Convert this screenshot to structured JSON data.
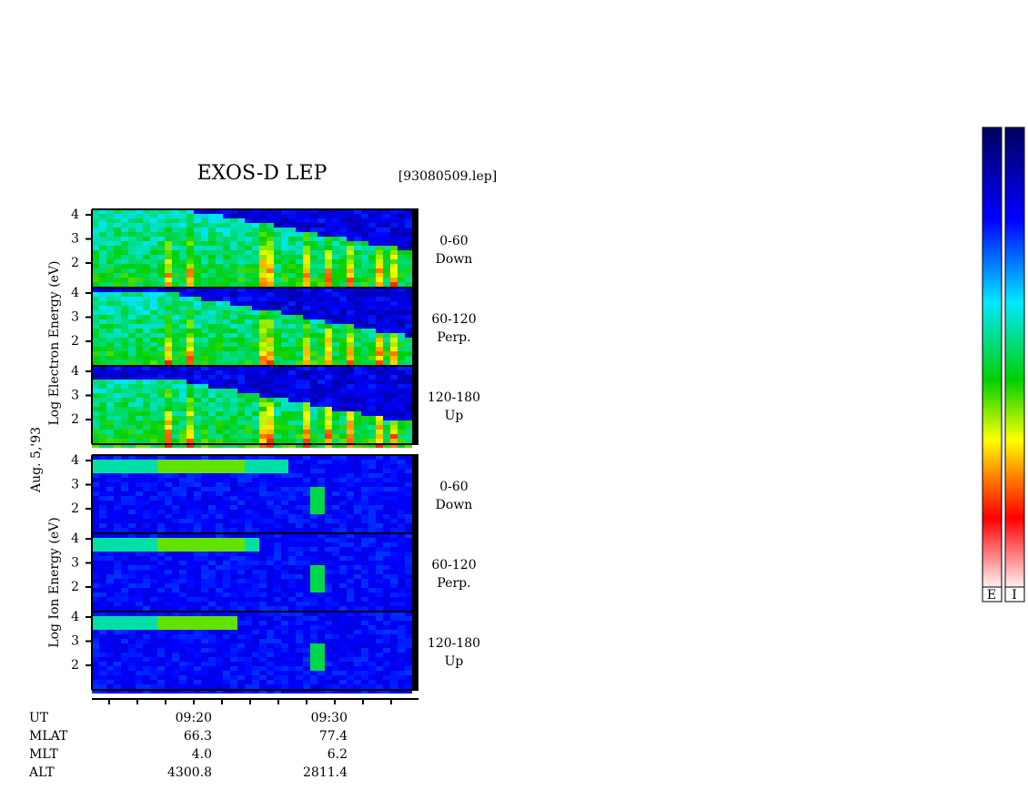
{
  "title": "EXOS-D LEP",
  "file": "[93080509.lep]",
  "date": "Aug. 5,'93",
  "energy_ticks": [
    4,
    3,
    2
  ],
  "electron": {
    "axis_label": "Log Electron Energy (eV)",
    "panels": [
      {
        "angle": "0-60",
        "direction": "Down"
      },
      {
        "angle": "60-120",
        "direction": "Perp."
      },
      {
        "angle": "120-180",
        "direction": "Up"
      }
    ]
  },
  "ion": {
    "axis_label": "Log Ion Energy (eV)",
    "panels": [
      {
        "angle": "0-60",
        "direction": "Down"
      },
      {
        "angle": "60-120",
        "direction": "Perp."
      },
      {
        "angle": "120-180",
        "direction": "Up"
      }
    ]
  },
  "orbit": {
    "row_labels": [
      "UT",
      "MLAT",
      "MLT",
      "ALT"
    ],
    "columns": [
      {
        "UT": "09:20",
        "MLAT": "66.3",
        "MLT": "4.0",
        "ALT": "4300.8"
      },
      {
        "UT": "09:30",
        "MLAT": "77.4",
        "MLT": "6.2",
        "ALT": "2811.4"
      }
    ]
  },
  "colorbar": {
    "labels": [
      "E",
      "I"
    ]
  }
}
